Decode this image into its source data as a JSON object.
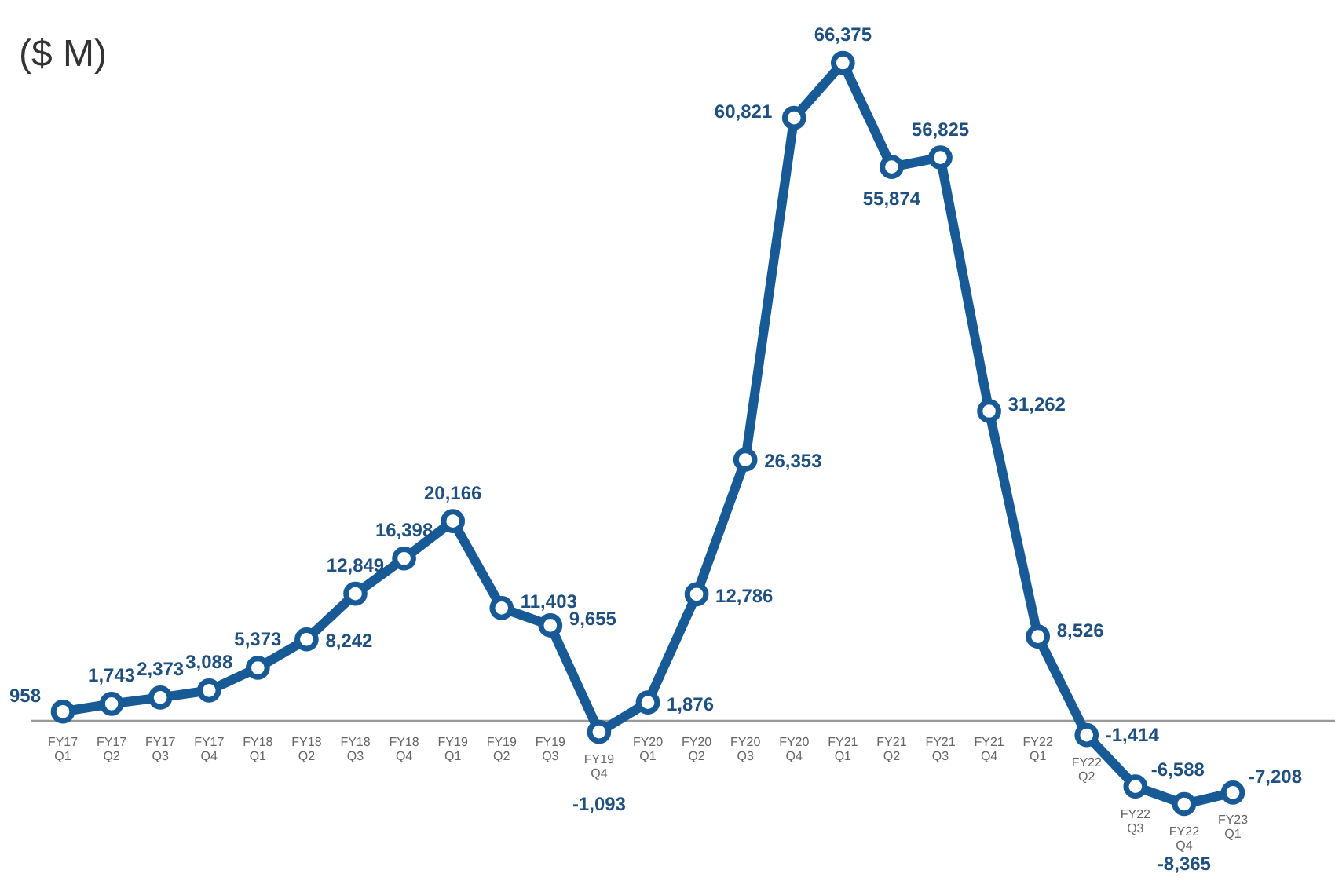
{
  "chart_data": {
    "type": "line",
    "title": "($ M)",
    "categories": [
      "FY17 Q1",
      "FY17 Q2",
      "FY17 Q3",
      "FY17 Q4",
      "FY18 Q1",
      "FY18 Q2",
      "FY18 Q3",
      "FY18 Q4",
      "FY19 Q1",
      "FY19 Q2",
      "FY19 Q3",
      "FY19 Q4",
      "FY20 Q1",
      "FY20 Q2",
      "FY20 Q3",
      "FY20 Q4",
      "FY21 Q1",
      "FY21 Q2",
      "FY21 Q3",
      "FY21 Q4",
      "FY22 Q1",
      "FY22 Q2",
      "FY22 Q3",
      "FY22 Q4",
      "FY23 Q1"
    ],
    "series": [
      {
        "color": "#175a96",
        "values": [
          958,
          1743,
          2373,
          3088,
          5373,
          8242,
          12849,
          16398,
          20166,
          11403,
          9655,
          -1093,
          1876,
          12786,
          26353,
          60821,
          66375,
          55874,
          56825,
          31262,
          8526,
          -1414,
          -6588,
          -8365,
          -7208
        ],
        "value_labels": [
          "958",
          "1,743",
          "2,373",
          "3,088",
          "5,373",
          "8,242",
          "12,849",
          "16,398",
          "20,166",
          "11,403",
          "9,655",
          "-1,093",
          "1,876",
          "12,786",
          "26,353",
          "60,821",
          "66,375",
          "55,874",
          "56,825",
          "31,262",
          "8,526",
          "-1,414",
          "-6,588",
          "-8,365",
          "-7,208"
        ]
      }
    ],
    "marker": "circle",
    "line_style": "solid"
  }
}
